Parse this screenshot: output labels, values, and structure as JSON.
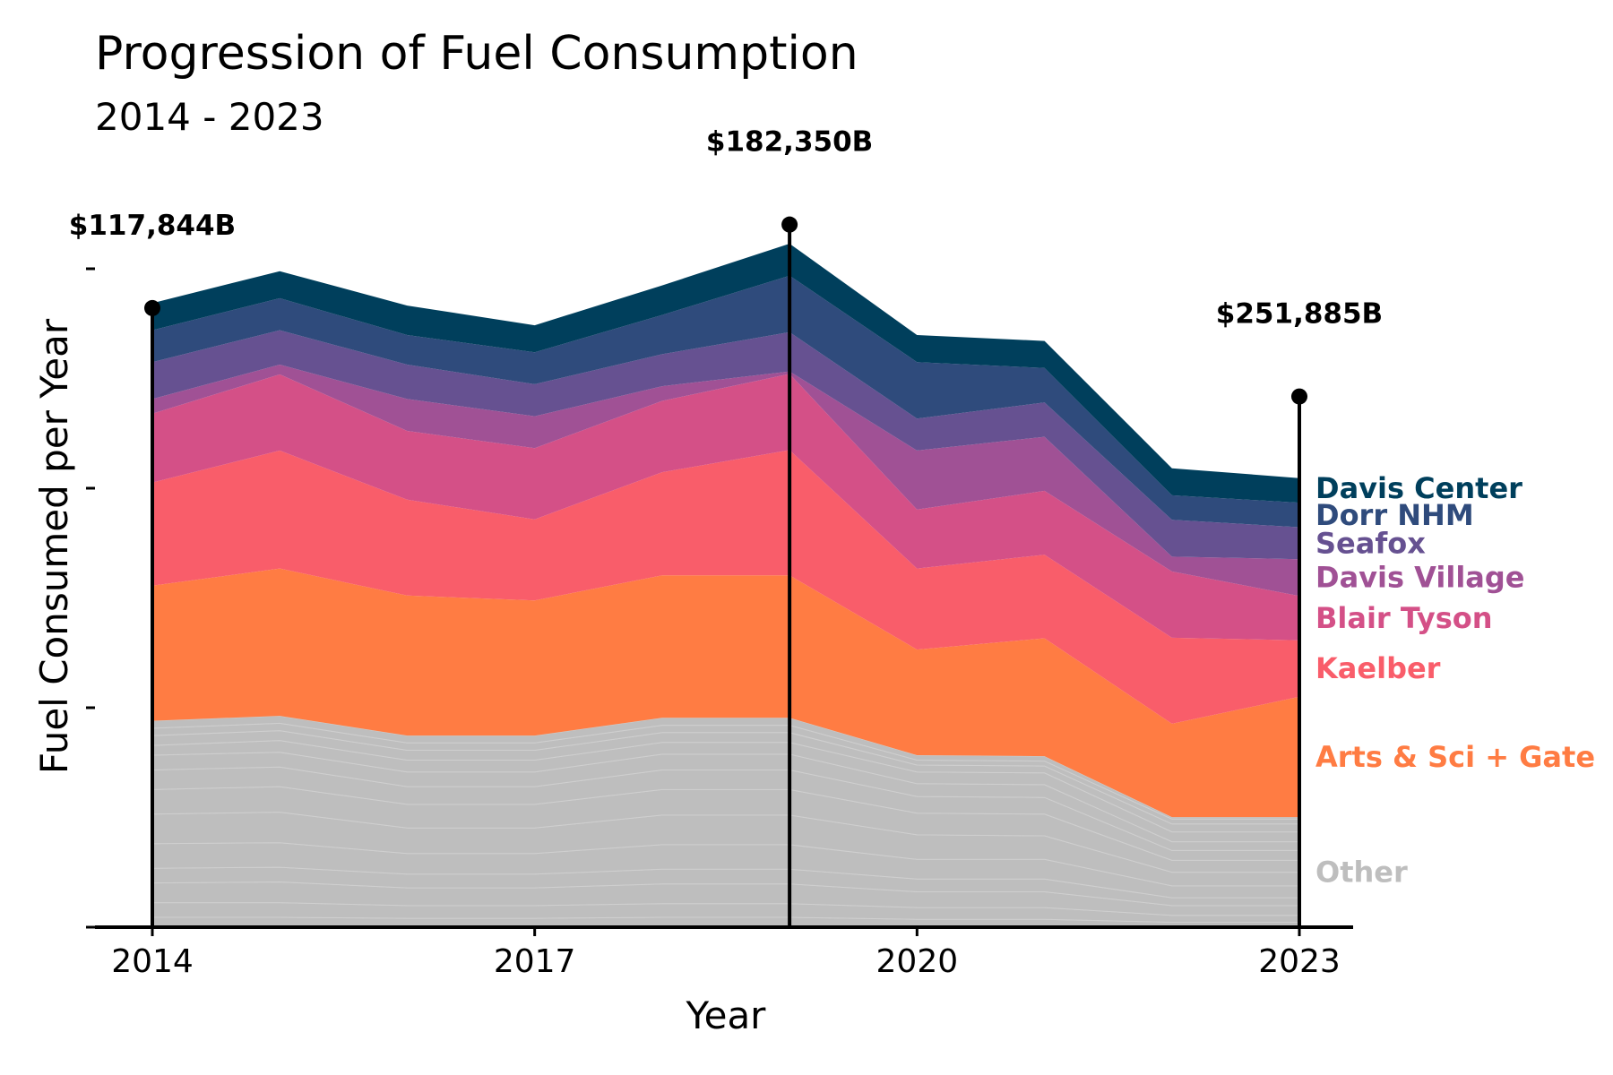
{
  "chart_data": {
    "type": "area",
    "stacked": true,
    "title": "Progression of Fuel Consumption",
    "subtitle": "2014 - 2023",
    "xlabel": "Year",
    "ylabel": "Fuel Consumed per Year",
    "x": [
      2014,
      2015,
      2016,
      2017,
      2018,
      2019,
      2020,
      2021,
      2022,
      2023
    ],
    "x_ticks": [
      "2014",
      "2017",
      "2020",
      "2023"
    ],
    "ylim": [
      0,
      134
    ],
    "y_ticks_count": 4,
    "grid": false,
    "legend": "direct labels at right",
    "other_color": "#bebebe",
    "other_label": "Other",
    "other_layers": [
      [
        2.0,
        2.0,
        1.8,
        1.8,
        2.0,
        2.0,
        1.6,
        1.6,
        1.0,
        1.0
      ],
      [
        3.0,
        3.0,
        2.6,
        2.6,
        2.8,
        2.8,
        2.4,
        2.4,
        1.4,
        1.4
      ],
      [
        4.0,
        4.2,
        3.6,
        3.6,
        4.0,
        4.0,
        3.2,
        3.2,
        2.0,
        2.0
      ],
      [
        3.0,
        3.0,
        2.8,
        2.8,
        3.0,
        3.0,
        2.6,
        2.6,
        1.6,
        1.6
      ],
      [
        5.0,
        5.0,
        4.2,
        4.2,
        5.0,
        5.0,
        4.0,
        4.0,
        2.4,
        2.4
      ],
      [
        6.0,
        6.2,
        5.2,
        5.2,
        6.0,
        6.0,
        5.0,
        4.8,
        2.8,
        2.8
      ],
      [
        5.0,
        5.2,
        4.8,
        4.8,
        5.2,
        5.2,
        4.4,
        4.4,
        2.4,
        2.4
      ],
      [
        4.0,
        4.0,
        3.6,
        3.6,
        4.0,
        4.0,
        3.4,
        3.4,
        2.0,
        2.0
      ],
      [
        3.0,
        3.0,
        3.0,
        3.0,
        3.2,
        3.2,
        2.6,
        2.6,
        1.8,
        1.8
      ],
      [
        2.0,
        2.4,
        2.4,
        2.4,
        2.4,
        2.4,
        2.4,
        2.4,
        2.0,
        2.0
      ],
      [
        2.0,
        2.0,
        2.0,
        2.0,
        2.0,
        2.0,
        1.4,
        1.4,
        1.6,
        1.6
      ],
      [
        1.5,
        1.5,
        1.5,
        1.5,
        1.5,
        1.5,
        1.0,
        1.0,
        1.0,
        1.0
      ],
      [
        1.5,
        1.5,
        1.5,
        1.5,
        1.5,
        1.5,
        1.0,
        1.0,
        0.4,
        0.4
      ]
    ],
    "series": [
      {
        "name": "Arts & Sci + Gate",
        "color": "#ff7c43",
        "values": [
          27.5,
          30.0,
          28.5,
          27.5,
          29.0,
          29.0,
          21.5,
          24.0,
          19.0,
          24.5
        ]
      },
      {
        "name": "Kaelber",
        "color": "#f95d6a",
        "values": [
          21.0,
          24.0,
          19.5,
          16.5,
          21.0,
          25.5,
          16.5,
          17.0,
          17.5,
          11.5
        ]
      },
      {
        "name": "Blair Tyson",
        "color": "#d45087",
        "values": [
          14.0,
          15.5,
          14.0,
          14.5,
          14.5,
          15.5,
          12.0,
          13.0,
          13.5,
          9.0
        ]
      },
      {
        "name": "Davis Village",
        "color": "#a05195",
        "values": [
          3.0,
          2.0,
          6.5,
          6.5,
          3.0,
          0.5,
          12.0,
          11.0,
          3.0,
          7.5
        ]
      },
      {
        "name": "Seafox",
        "color": "#665191",
        "values": [
          7.5,
          7.0,
          7.0,
          6.5,
          6.5,
          8.0,
          6.5,
          7.0,
          7.5,
          6.5
        ]
      },
      {
        "name": "Dorr NHM",
        "color": "#2f4b7c",
        "values": [
          6.5,
          6.5,
          6.0,
          6.5,
          8.0,
          11.5,
          11.5,
          7.0,
          5.0,
          5.0
        ]
      },
      {
        "name": "Davis Center",
        "color": "#003f5c",
        "values": [
          5.5,
          5.5,
          6.0,
          5.5,
          6.0,
          6.5,
          5.5,
          5.5,
          5.5,
          5.0
        ]
      }
    ],
    "callouts": [
      {
        "x": 2014,
        "level": 126,
        "label": "$117,844B"
      },
      {
        "x": 2019,
        "level": 143,
        "label": "$182,350B"
      },
      {
        "x": 2023,
        "level": 108,
        "label": "$251,885B"
      }
    ]
  }
}
